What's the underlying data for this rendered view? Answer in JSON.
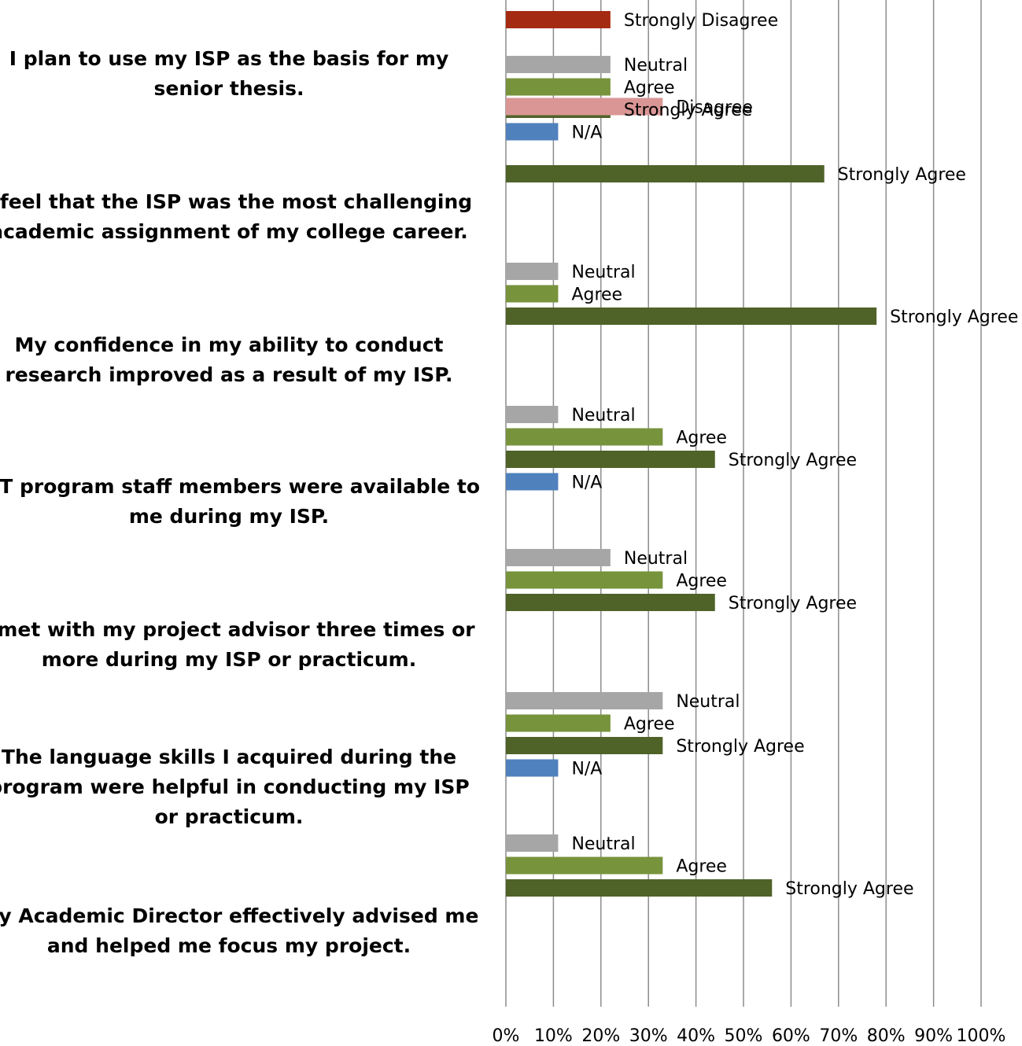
{
  "chart_data": {
    "type": "bar",
    "orientation": "horizontal",
    "x_range": [
      0,
      100
    ],
    "x_unit": "%",
    "x_ticks": [
      "0%",
      "10%",
      "20%",
      "30%",
      "40%",
      "50%",
      "60%",
      "70%",
      "80%",
      "90%",
      "100%"
    ],
    "grid": true,
    "legend": "none; each bar labeled inline with its response category",
    "colors": {
      "Strongly Disagree": "#a52a12",
      "Disagree": "#d99694",
      "Neutral": "#a6a6a6",
      "Agree": "#77933c",
      "Strongly Agree": "#4f6228",
      "N/A": "#4f81bd"
    },
    "groups": [
      {
        "question": "I plan to use my ISP as the basis for my senior thesis.",
        "bars": [
          {
            "label": "Strongly Disagree",
            "value": 22
          },
          {
            "label": "Neutral",
            "value": 22
          },
          {
            "label": "Agree",
            "value": 22
          },
          {
            "label": "Strongly Agree",
            "value": 22
          },
          {
            "label": "N/A",
            "value": 11
          }
        ]
      },
      {
        "question": "I feel that the ISP was the most challenging academic assignment of my college career.",
        "bars": [
          {
            "label": "Disagree",
            "value": 33
          },
          {
            "label": "Strongly Agree",
            "value": 67
          }
        ]
      },
      {
        "question": "My confidence in my ability to conduct research improved as a result of my ISP.",
        "bars": [
          {
            "label": "Neutral",
            "value": 11
          },
          {
            "label": "Agree",
            "value": 11
          },
          {
            "label": "Strongly Agree",
            "value": 78
          }
        ]
      },
      {
        "question": "SIT program staff members were available to me during my ISP.",
        "bars": [
          {
            "label": "Neutral",
            "value": 11
          },
          {
            "label": "Agree",
            "value": 33
          },
          {
            "label": "Strongly Agree",
            "value": 44
          },
          {
            "label": "N/A",
            "value": 11
          }
        ]
      },
      {
        "question": "I met with my project advisor three times or more during my ISP or practicum.",
        "bars": [
          {
            "label": "Neutral",
            "value": 22
          },
          {
            "label": "Agree",
            "value": 33
          },
          {
            "label": "Strongly Agree",
            "value": 44
          }
        ]
      },
      {
        "question": "The language skills I acquired during the program were helpful in conducting my ISP or practicum.",
        "bars": [
          {
            "label": "Neutral",
            "value": 33
          },
          {
            "label": "Agree",
            "value": 22
          },
          {
            "label": "Strongly Agree",
            "value": 33
          },
          {
            "label": "N/A",
            "value": 11
          }
        ]
      },
      {
        "question": "My Academic Director effectively advised me and helped me focus my project.",
        "bars": [
          {
            "label": "Neutral",
            "value": 11
          },
          {
            "label": "Agree",
            "value": 33
          },
          {
            "label": "Strongly Agree",
            "value": 56
          }
        ]
      }
    ]
  }
}
